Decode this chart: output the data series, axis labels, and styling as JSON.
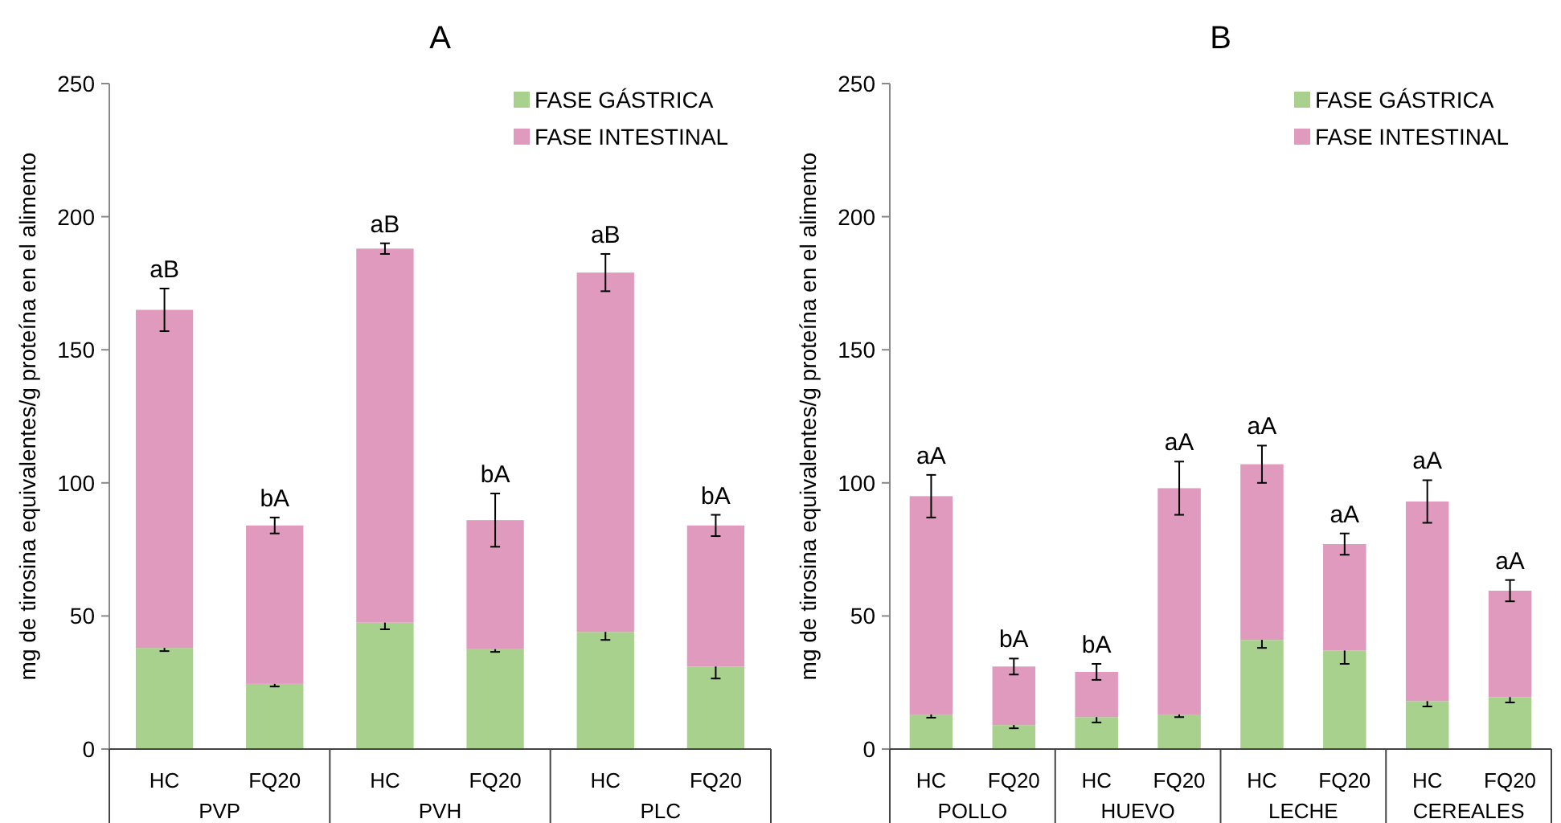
{
  "chart_data": [
    {
      "type": "bar",
      "title": "A",
      "ylabel": "mg de tirosina equivalentes/g proteína en el alimento",
      "categories": [
        "HC",
        "FQ20",
        "HC",
        "FQ20",
        "HC",
        "FQ20"
      ],
      "annotations": [
        "PVP",
        "PVH",
        "PLC"
      ],
      "stacked": true,
      "ylim": [
        0,
        250
      ],
      "yticks": [
        0,
        50,
        100,
        150,
        200,
        250
      ],
      "legend": "top right",
      "series": [
        {
          "name": "FASE GÁSTRICA",
          "color": "#a9d18e",
          "values": [
            38,
            24.5,
            47.5,
            37.5,
            44,
            31
          ],
          "errors": [
            1.2,
            1,
            2.5,
            1,
            3,
            4.5
          ]
        },
        {
          "name": "FASE INTESTINAL",
          "color": "#df9abd",
          "values": [
            127,
            59.5,
            140.5,
            48.5,
            135,
            53
          ],
          "errors": [
            8,
            3,
            2,
            10,
            7,
            4
          ],
          "value_labels": [
            "aB",
            "bA",
            "aB",
            "bA",
            "aB",
            "bA"
          ]
        }
      ]
    },
    {
      "type": "bar",
      "title": "B",
      "ylabel": "mg de tirosina equivalentes/g proteína en el alimento",
      "categories": [
        "HC",
        "FQ20",
        "HC",
        "FQ20",
        "HC",
        "FQ20",
        "HC",
        "FQ20"
      ],
      "annotations": [
        "POLLO",
        "HUEVO",
        "LECHE",
        "CEREALES"
      ],
      "stacked": true,
      "ylim": [
        0,
        250
      ],
      "yticks": [
        0,
        50,
        100,
        150,
        200,
        250
      ],
      "legend": "top right",
      "series": [
        {
          "name": "FASE GÁSTRICA",
          "color": "#a9d18e",
          "values": [
            13,
            9,
            12,
            13,
            41,
            37,
            18,
            19.5
          ],
          "errors": [
            1.2,
            1.2,
            2,
            1,
            3,
            5,
            2,
            2
          ]
        },
        {
          "name": "FASE INTESTINAL",
          "color": "#df9abd",
          "values": [
            82,
            22,
            17,
            85,
            66,
            40,
            75,
            40
          ],
          "errors": [
            8,
            3,
            3,
            10,
            7,
            4,
            8,
            4
          ],
          "value_labels": [
            "aA",
            "bA",
            "bA",
            "aA",
            "aA",
            "aA",
            "aA",
            "aA"
          ]
        }
      ]
    }
  ]
}
